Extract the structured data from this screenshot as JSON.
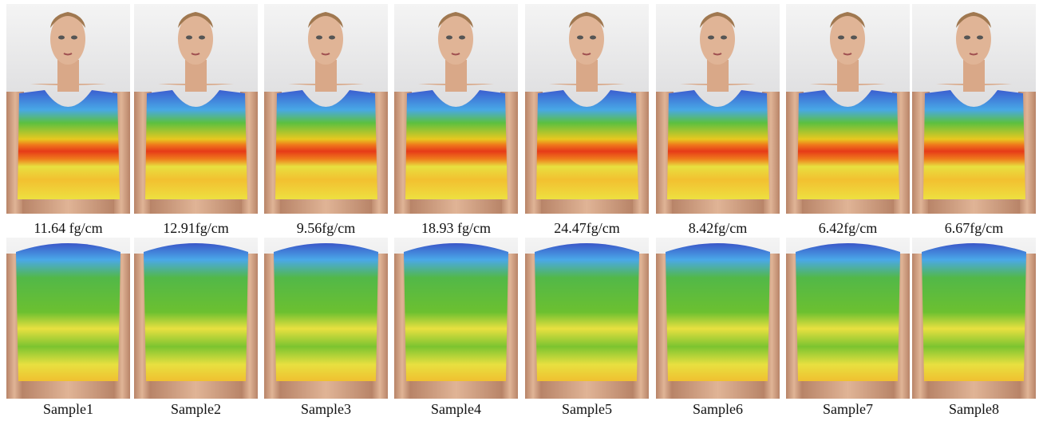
{
  "panels": [
    {
      "value_label": "11.64 fg/cm",
      "name": "Sample1"
    },
    {
      "value_label": "12.91fg/cm",
      "name": "Sample2"
    },
    {
      "value_label": "9.56fg/cm",
      "name": "Sample3"
    },
    {
      "value_label": "18.93 fg/cm",
      "name": "Sample4"
    },
    {
      "value_label": "24.47fg/cm",
      "name": "Sample5"
    },
    {
      "value_label": "8.42fg/cm",
      "name": "Sample6"
    },
    {
      "value_label": "6.42fg/cm",
      "name": "Sample7"
    },
    {
      "value_label": "6.67fg/cm",
      "name": "Sample8"
    }
  ]
}
